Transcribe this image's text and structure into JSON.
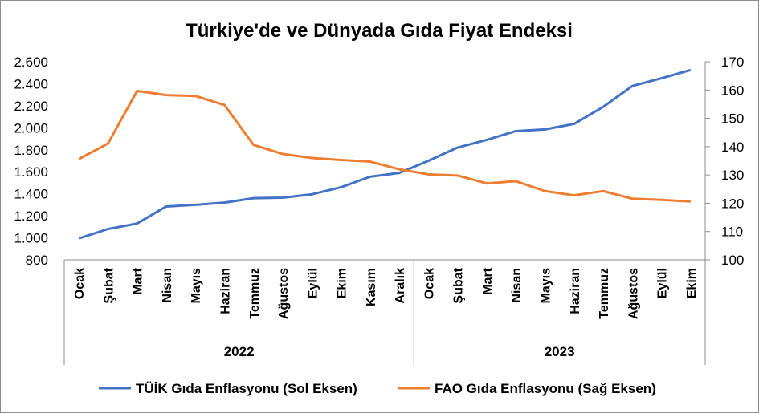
{
  "chart_data": {
    "type": "line",
    "title": "Türkiye'de ve Dünyada Gıda Fiyat Endeksi",
    "categories": [
      "Ocak",
      "Şubat",
      "Mart",
      "Nisan",
      "Mayıs",
      "Haziran",
      "Temmuz",
      "Ağustos",
      "Eylül",
      "Ekim",
      "Kasım",
      "Aralık",
      "Ocak",
      "Şubat",
      "Mart",
      "Nisan",
      "Mayıs",
      "Haziran",
      "Temmuz",
      "Ağustos",
      "Eylül",
      "Ekim"
    ],
    "groups": [
      {
        "label": "2022",
        "count": 12
      },
      {
        "label": "2023",
        "count": 10
      }
    ],
    "left_axis": {
      "min": 800,
      "max": 2600,
      "step": 200,
      "ticks": [
        "800",
        "1.000",
        "1.200",
        "1.400",
        "1.600",
        "1.800",
        "2.000",
        "2.200",
        "2.400",
        "2.600"
      ]
    },
    "right_axis": {
      "min": 100,
      "max": 170,
      "step": 10,
      "ticks": [
        "100",
        "110",
        "120",
        "130",
        "140",
        "150",
        "160",
        "170"
      ]
    },
    "series": [
      {
        "name": "TÜİK Gıda Enflasyonu (Sol Eksen)",
        "axis": "left",
        "color": "#4472C4",
        "values": [
          995,
          1080,
          1130,
          1285,
          1300,
          1320,
          1360,
          1365,
          1395,
          1460,
          1555,
          1590,
          1700,
          1820,
          1890,
          1970,
          1985,
          2035,
          2190,
          2380,
          2450,
          2525
        ]
      },
      {
        "name": "FAO Gıda Enflasyonu (Sağ Eksen)",
        "axis": "right",
        "color": "#ED7D31",
        "values": [
          135.6,
          141.1,
          159.7,
          158.2,
          157.9,
          154.7,
          140.6,
          137.4,
          136.0,
          135.3,
          134.7,
          132.0,
          130.2,
          129.8,
          127.0,
          127.8,
          124.3,
          122.8,
          124.3,
          121.6,
          121.2,
          120.6
        ]
      }
    ],
    "legend_position": "bottom",
    "grid": false
  }
}
